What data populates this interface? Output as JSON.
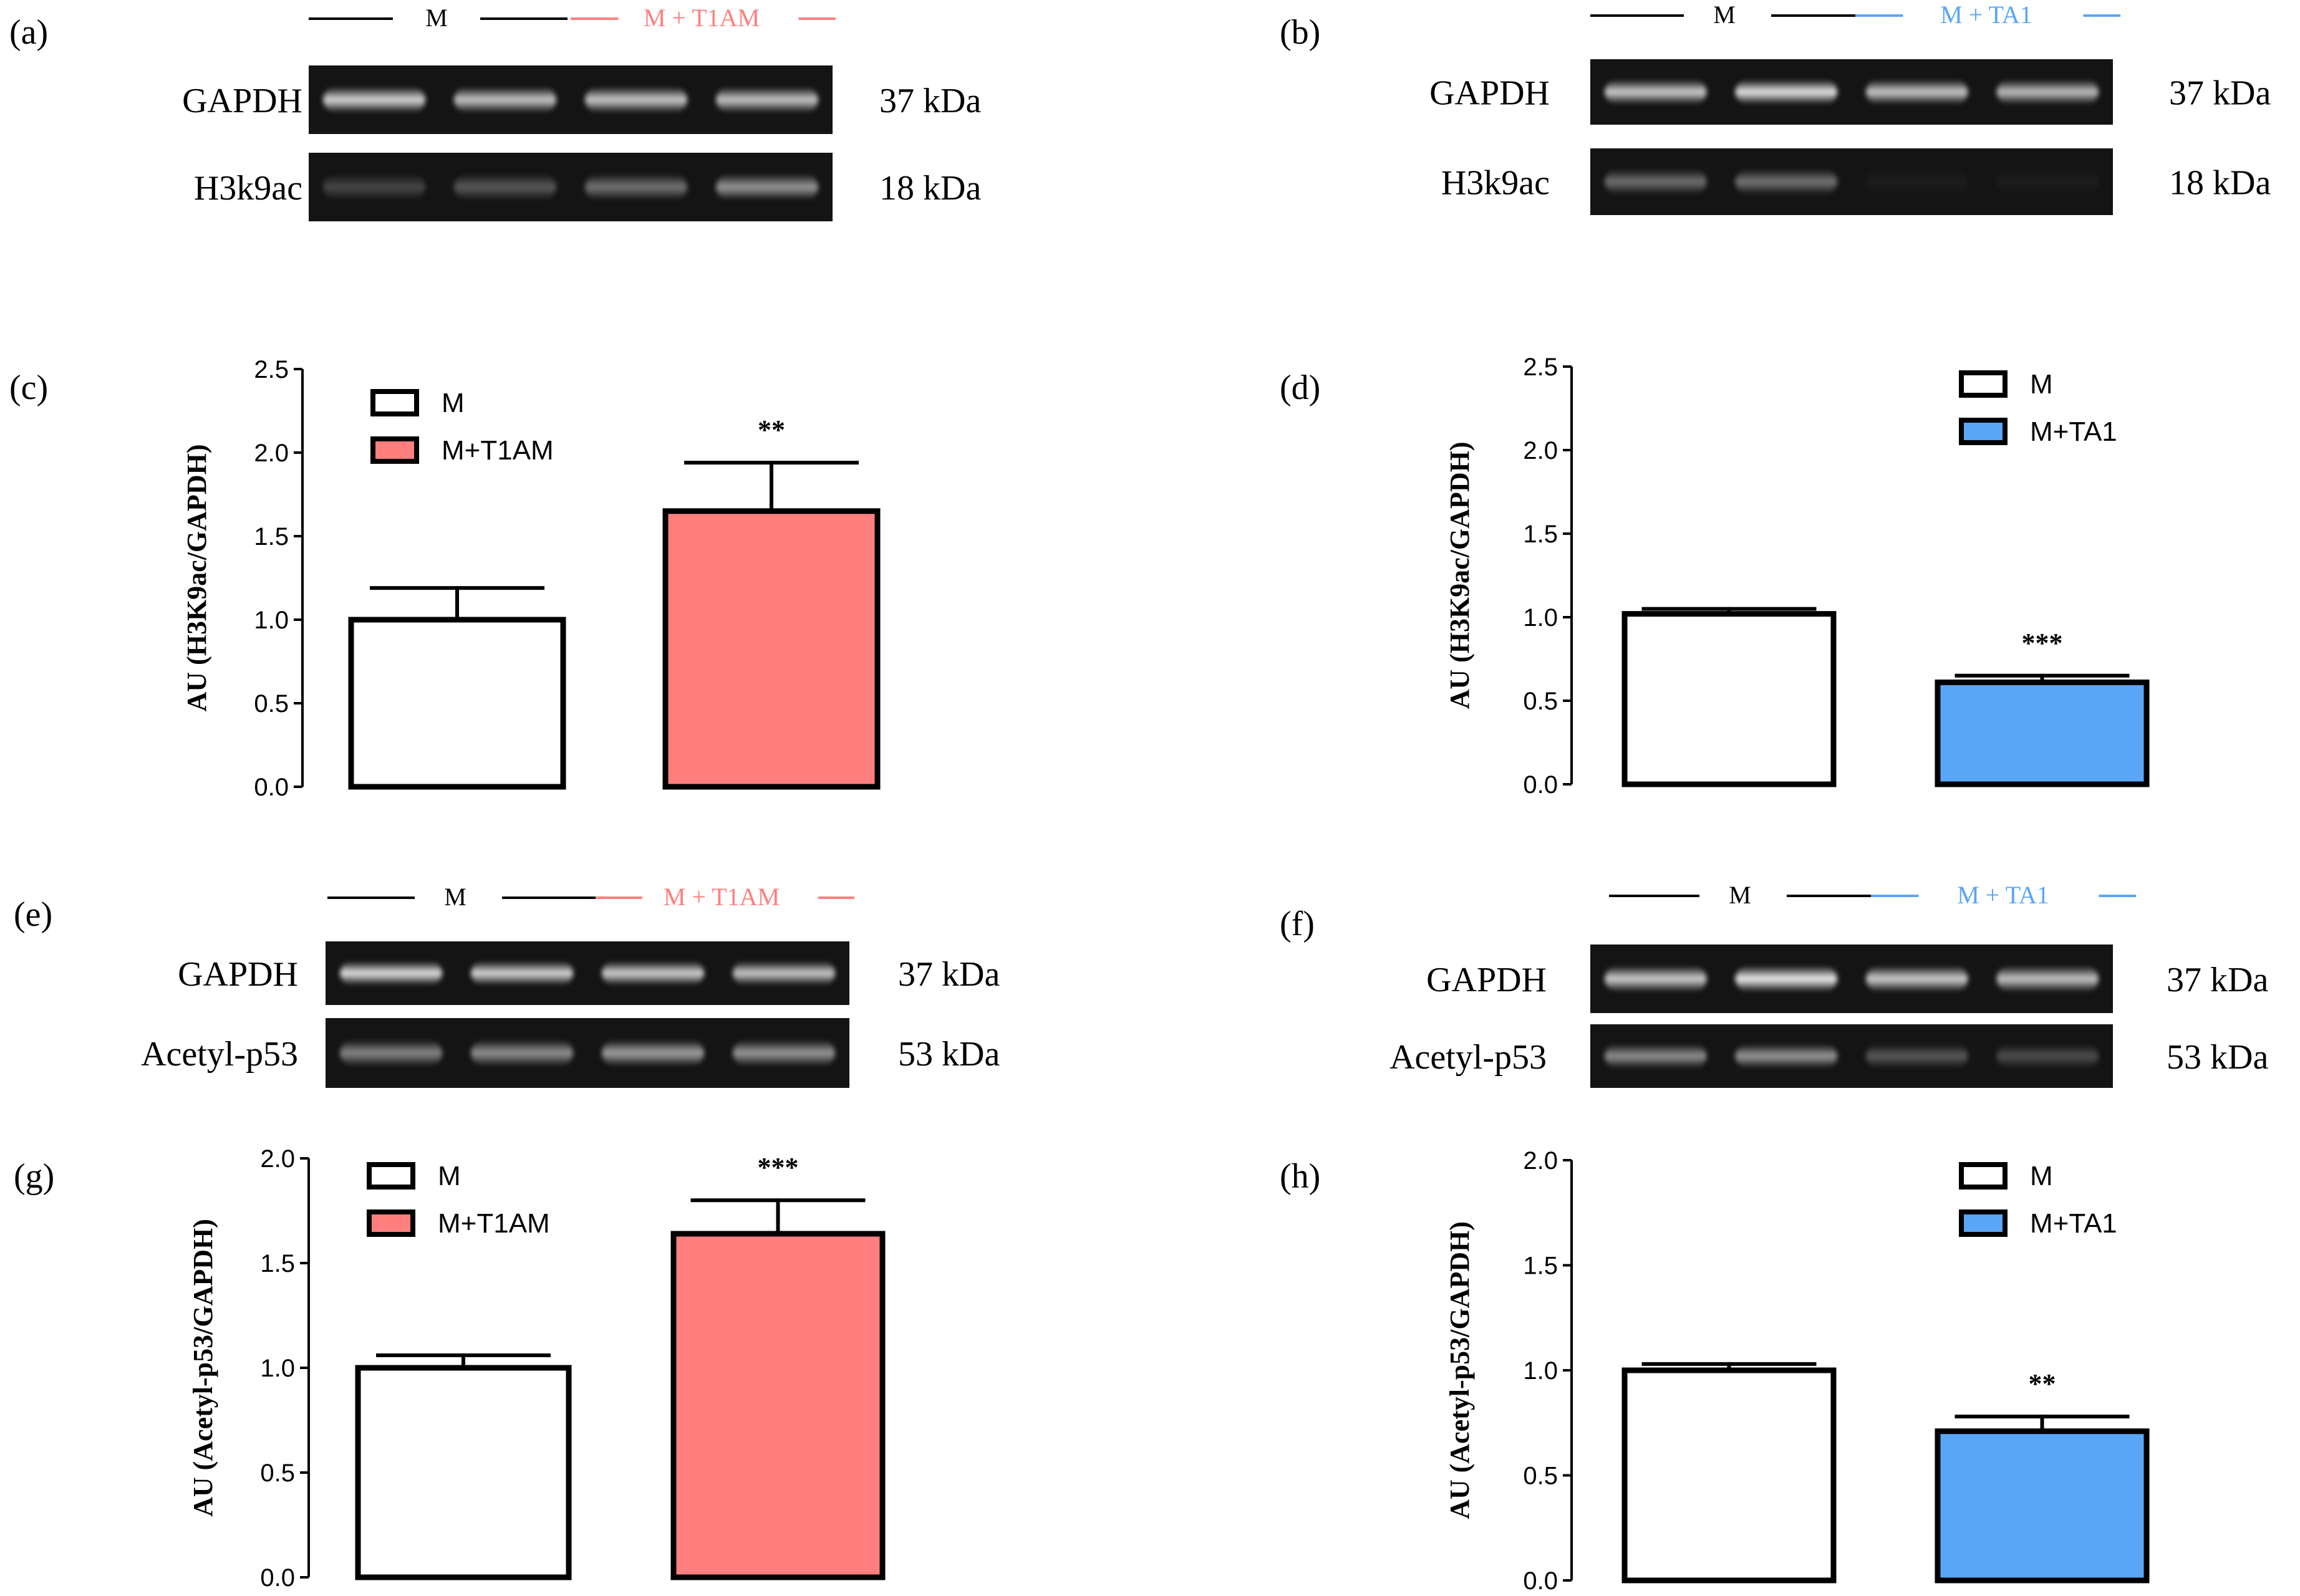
{
  "colors": {
    "t1am": "#ff7f7f",
    "ta1": "#5aa6f6",
    "black": "#000000",
    "lane_band": "#e8e8e8",
    "gel_bg": "#141414"
  },
  "blots": [
    {
      "id": "a",
      "panel_label": "(a)",
      "group_m": "M",
      "group_t": "M + T1AM",
      "t_color": "#ff7f7f",
      "rows": [
        {
          "label": "GAPDH",
          "kda": "37 kDa",
          "intensity": [
            0.85,
            0.78,
            0.8,
            0.78
          ]
        },
        {
          "label": "H3k9ac",
          "kda": "18 kDa",
          "intensity": [
            0.22,
            0.3,
            0.42,
            0.58
          ]
        }
      ]
    },
    {
      "id": "b",
      "panel_label": "(b)",
      "group_m": "M",
      "group_t": "M + TA1",
      "t_color": "#5aa6f6",
      "rows": [
        {
          "label": "GAPDH",
          "kda": "37 kDa",
          "intensity": [
            0.82,
            0.92,
            0.8,
            0.75
          ]
        },
        {
          "label": "H3k9ac",
          "kda": "18 kDa",
          "intensity": [
            0.4,
            0.42,
            0.04,
            0.04
          ]
        }
      ]
    },
    {
      "id": "e",
      "panel_label": "(e)",
      "group_m": "M",
      "group_t": "M + T1AM",
      "t_color": "#ff7f7f",
      "rows": [
        {
          "label": "GAPDH",
          "kda": "37 kDa",
          "intensity": [
            0.9,
            0.86,
            0.84,
            0.8
          ]
        },
        {
          "label": "Acetyl-p53",
          "kda": "53 kDa",
          "intensity": [
            0.5,
            0.55,
            0.62,
            0.58
          ]
        }
      ]
    },
    {
      "id": "f",
      "panel_label": "(f)",
      "group_m": "M",
      "group_t": "M + TA1",
      "t_color": "#5aa6f6",
      "rows": [
        {
          "label": "GAPDH",
          "kda": "37 kDa",
          "intensity": [
            0.82,
            0.95,
            0.82,
            0.78
          ]
        },
        {
          "label": "Acetyl-p53",
          "kda": "53 kDa",
          "intensity": [
            0.55,
            0.58,
            0.3,
            0.25
          ]
        }
      ]
    }
  ],
  "chart_data": [
    {
      "panel_label": "(c)",
      "type": "bar",
      "ylabel": "AU (H3K9ac/GAPDH)",
      "ylim": [
        0,
        2.5
      ],
      "yticks": [
        "0.0",
        "0.5",
        "1.0",
        "1.5",
        "2.0",
        "2.5"
      ],
      "legend_position": "top-left",
      "series": [
        {
          "name": "M",
          "value": 1.0,
          "error": 0.19,
          "color": "#ffffff",
          "significance": ""
        },
        {
          "name": "M+T1AM",
          "value": 1.65,
          "error": 0.29,
          "color": "#ff7f7f",
          "significance": "**"
        }
      ]
    },
    {
      "panel_label": "(d)",
      "type": "bar",
      "ylabel": "AU (H3K9ac/GAPDH)",
      "ylim": [
        0,
        2.5
      ],
      "yticks": [
        "0.0",
        "0.5",
        "1.0",
        "1.5",
        "2.0",
        "2.5"
      ],
      "legend_position": "top-right",
      "series": [
        {
          "name": "M",
          "value": 1.02,
          "error": 0.03,
          "color": "#ffffff",
          "significance": ""
        },
        {
          "name": "M+TA1",
          "value": 0.61,
          "error": 0.04,
          "color": "#5aa6f6",
          "significance": "***"
        }
      ]
    },
    {
      "panel_label": "(g)",
      "type": "bar",
      "ylabel": "AU (Acetyl-p53/GAPDH)",
      "ylim": [
        0,
        2.0
      ],
      "yticks": [
        "0.0",
        "0.5",
        "1.0",
        "1.5",
        "2.0"
      ],
      "legend_position": "top-left",
      "series": [
        {
          "name": "M",
          "value": 1.0,
          "error": 0.06,
          "color": "#ffffff",
          "significance": ""
        },
        {
          "name": "M+T1AM",
          "value": 1.64,
          "error": 0.16,
          "color": "#ff7f7f",
          "significance": "***"
        }
      ]
    },
    {
      "panel_label": "(h)",
      "type": "bar",
      "ylabel": "AU (Acetyl-p53/GAPDH)",
      "ylim": [
        0,
        2.0
      ],
      "yticks": [
        "0.0",
        "0.5",
        "1.0",
        "1.5",
        "2.0"
      ],
      "legend_position": "top-right",
      "series": [
        {
          "name": "M",
          "value": 1.0,
          "error": 0.03,
          "color": "#ffffff",
          "significance": ""
        },
        {
          "name": "M+TA1",
          "value": 0.71,
          "error": 0.07,
          "color": "#5aa6f6",
          "significance": "**"
        }
      ]
    }
  ]
}
